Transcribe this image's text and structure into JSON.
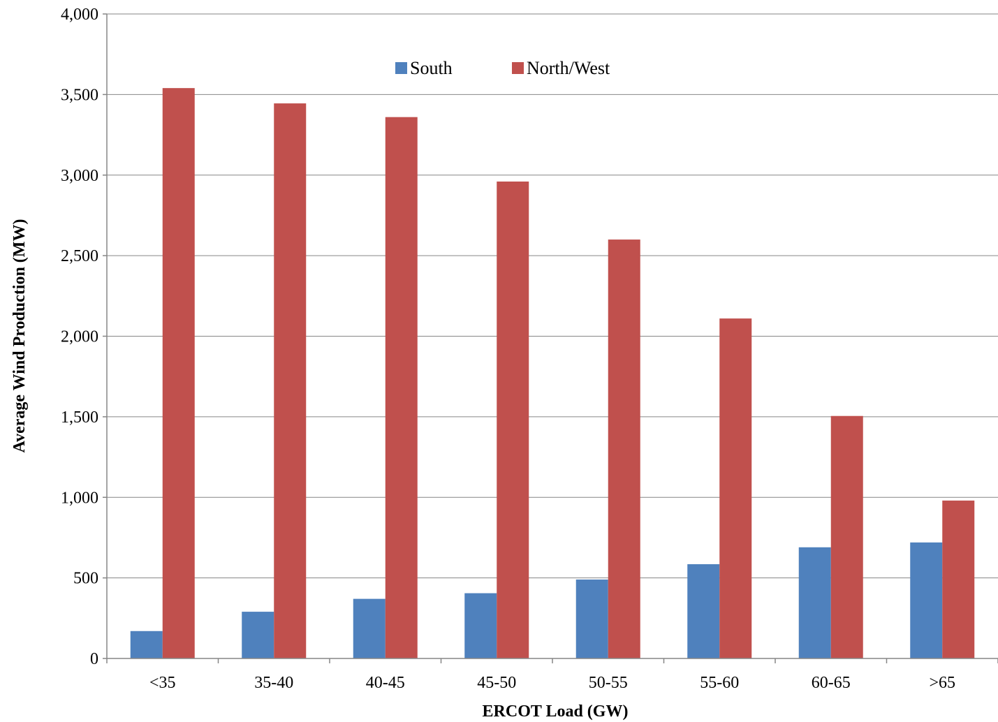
{
  "chart_data": {
    "type": "bar",
    "title": "",
    "xlabel": "ERCOT Load (GW)",
    "ylabel": "Average Wind Production (MW)",
    "categories": [
      "<35",
      "35-40",
      "40-45",
      "45-50",
      "50-55",
      "55-60",
      "60-65",
      ">65"
    ],
    "series": [
      {
        "name": "South",
        "color": "#4F81BD",
        "values": [
          170,
          290,
          370,
          405,
          490,
          585,
          690,
          720
        ]
      },
      {
        "name": "North/West",
        "color": "#C0504D",
        "values": [
          3540,
          3445,
          3360,
          2960,
          2600,
          2110,
          1505,
          980
        ]
      }
    ],
    "ylim": [
      0,
      4000
    ],
    "yticks": [
      0,
      500,
      1000,
      1500,
      2000,
      2500,
      3000,
      3500,
      4000
    ],
    "ytick_labels": [
      "0",
      "500",
      "1,000",
      "1,500",
      "2,000",
      "2,500",
      "3,000",
      "3,500",
      "4,000"
    ],
    "grid": true,
    "legend": "top-center"
  }
}
